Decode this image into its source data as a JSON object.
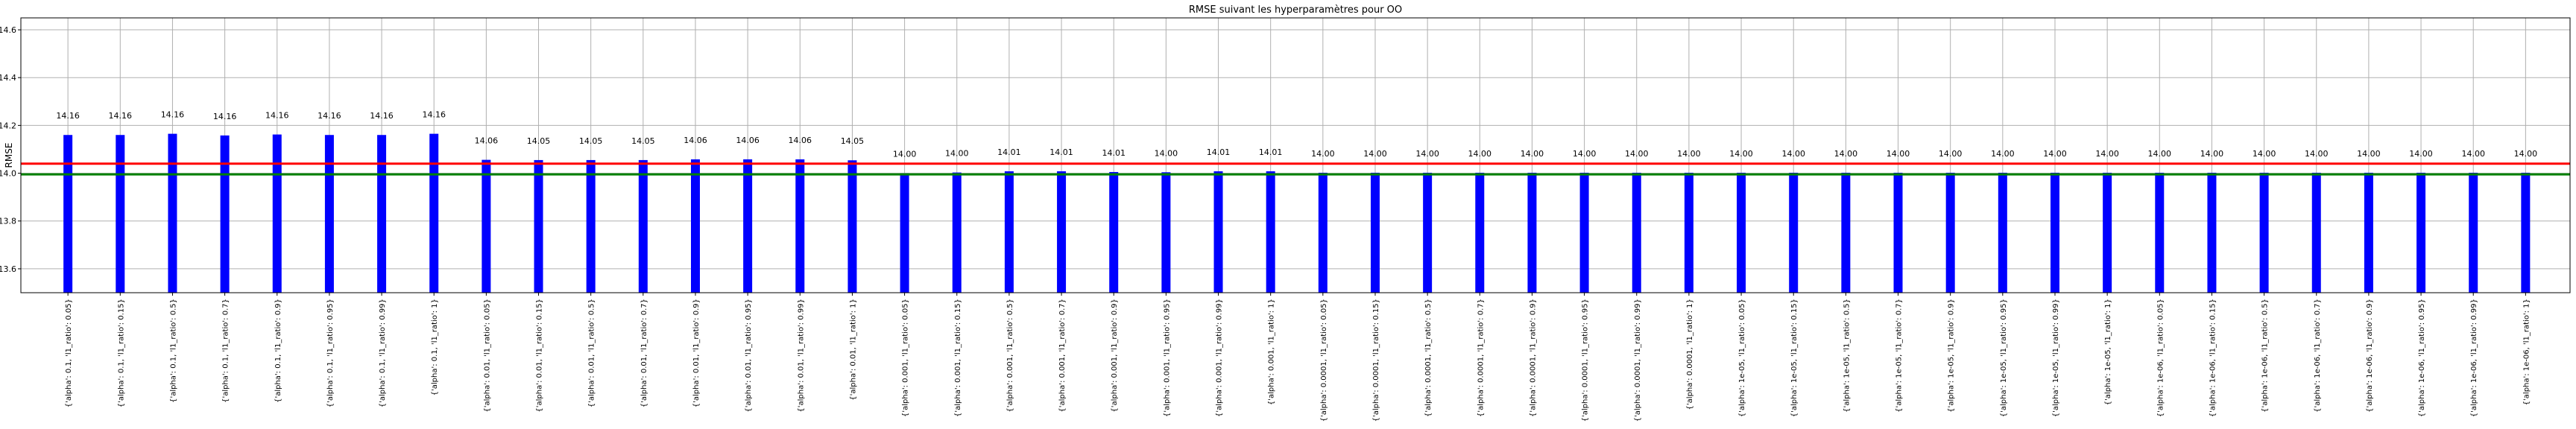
{
  "chart_data": {
    "type": "bar",
    "title": "RMSE suivant les hyperparamètres pour OO",
    "xlabel": "",
    "ylabel": "RMSE",
    "ylim": [
      13.5,
      14.65
    ],
    "yticks": [
      "13.6",
      "13.8",
      "14.0",
      "14.2",
      "14.4",
      "14.6"
    ],
    "grid": true,
    "bar_color": "#0000ff",
    "categories": [
      "{'alpha': 0.1, 'l1_ratio': 0.05}",
      "{'alpha': 0.1, 'l1_ratio': 0.15}",
      "{'alpha': 0.1, 'l1_ratio': 0.5}",
      "{'alpha': 0.1, 'l1_ratio': 0.7}",
      "{'alpha': 0.1, 'l1_ratio': 0.9}",
      "{'alpha': 0.1, 'l1_ratio': 0.95}",
      "{'alpha': 0.1, 'l1_ratio': 0.99}",
      "{'alpha': 0.1, 'l1_ratio': 1}",
      "{'alpha': 0.01, 'l1_ratio': 0.05}",
      "{'alpha': 0.01, 'l1_ratio': 0.15}",
      "{'alpha': 0.01, 'l1_ratio': 0.5}",
      "{'alpha': 0.01, 'l1_ratio': 0.7}",
      "{'alpha': 0.01, 'l1_ratio': 0.9}",
      "{'alpha': 0.01, 'l1_ratio': 0.95}",
      "{'alpha': 0.01, 'l1_ratio': 0.99}",
      "{'alpha': 0.01, 'l1_ratio': 1}",
      "{'alpha': 0.001, 'l1_ratio': 0.05}",
      "{'alpha': 0.001, 'l1_ratio': 0.15}",
      "{'alpha': 0.001, 'l1_ratio': 0.5}",
      "{'alpha': 0.001, 'l1_ratio': 0.7}",
      "{'alpha': 0.001, 'l1_ratio': 0.9}",
      "{'alpha': 0.001, 'l1_ratio': 0.95}",
      "{'alpha': 0.001, 'l1_ratio': 0.99}",
      "{'alpha': 0.001, 'l1_ratio': 1}",
      "{'alpha': 0.0001, 'l1_ratio': 0.05}",
      "{'alpha': 0.0001, 'l1_ratio': 0.15}",
      "{'alpha': 0.0001, 'l1_ratio': 0.5}",
      "{'alpha': 0.0001, 'l1_ratio': 0.7}",
      "{'alpha': 0.0001, 'l1_ratio': 0.9}",
      "{'alpha': 0.0001, 'l1_ratio': 0.95}",
      "{'alpha': 0.0001, 'l1_ratio': 0.99}",
      "{'alpha': 0.0001, 'l1_ratio': 1}",
      "{'alpha': 1e-05, 'l1_ratio': 0.05}",
      "{'alpha': 1e-05, 'l1_ratio': 0.15}",
      "{'alpha': 1e-05, 'l1_ratio': 0.5}",
      "{'alpha': 1e-05, 'l1_ratio': 0.7}",
      "{'alpha': 1e-05, 'l1_ratio': 0.9}",
      "{'alpha': 1e-05, 'l1_ratio': 0.95}",
      "{'alpha': 1e-05, 'l1_ratio': 0.99}",
      "{'alpha': 1e-05, 'l1_ratio': 1}",
      "{'alpha': 1e-06, 'l1_ratio': 0.05}",
      "{'alpha': 1e-06, 'l1_ratio': 0.15}",
      "{'alpha': 1e-06, 'l1_ratio': 0.5}",
      "{'alpha': 1e-06, 'l1_ratio': 0.7}",
      "{'alpha': 1e-06, 'l1_ratio': 0.9}",
      "{'alpha': 1e-06, 'l1_ratio': 0.95}",
      "{'alpha': 1e-06, 'l1_ratio': 0.99}",
      "{'alpha': 1e-06, 'l1_ratio': 1}"
    ],
    "values": [
      14.16,
      14.16,
      14.165,
      14.158,
      14.162,
      14.16,
      14.16,
      14.165,
      14.056,
      14.055,
      14.055,
      14.055,
      14.058,
      14.058,
      14.058,
      14.054,
      14.0,
      14.003,
      14.008,
      14.008,
      14.005,
      14.004,
      14.008,
      14.008,
      14.002,
      14.002,
      14.002,
      14.002,
      14.002,
      14.002,
      14.002,
      14.002,
      14.002,
      14.002,
      14.002,
      14.002,
      14.002,
      14.002,
      14.002,
      14.002,
      14.002,
      14.002,
      14.002,
      14.002,
      14.002,
      14.002,
      14.002,
      14.002
    ],
    "value_labels": [
      "14.16",
      "14.16",
      "14.16",
      "14.16",
      "14.16",
      "14.16",
      "14.16",
      "14.16",
      "14.06",
      "14.05",
      "14.05",
      "14.05",
      "14.06",
      "14.06",
      "14.06",
      "14.05",
      "14.00",
      "14.00",
      "14.01",
      "14.01",
      "14.01",
      "14.00",
      "14.01",
      "14.01",
      "14.00",
      "14.00",
      "14.00",
      "14.00",
      "14.00",
      "14.00",
      "14.00",
      "14.00",
      "14.00",
      "14.00",
      "14.00",
      "14.00",
      "14.00",
      "14.00",
      "14.00",
      "14.00",
      "14.00",
      "14.00",
      "14.00",
      "14.00",
      "14.00",
      "14.00",
      "14.00",
      "14.00"
    ],
    "reference_lines": [
      {
        "value": 14.04,
        "color": "#ff0000"
      },
      {
        "value": 13.995,
        "color": "#008000"
      }
    ]
  }
}
